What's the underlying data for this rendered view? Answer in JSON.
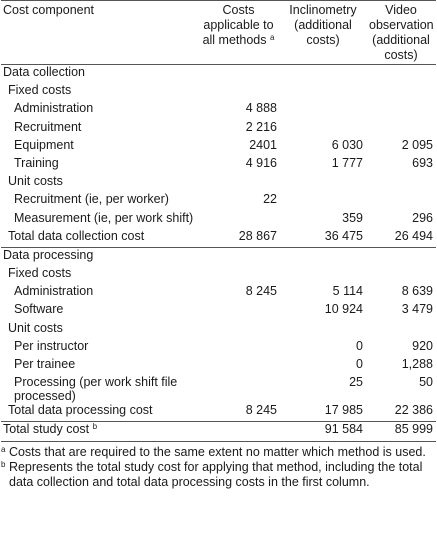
{
  "headers": {
    "component": "Cost component",
    "all_methods": "Costs applicable to all methods",
    "all_methods_mark": "a",
    "inclinometry": "Inclinometry (additional costs)",
    "video": "Video observation (additional costs)"
  },
  "rows": [
    {
      "label": "Data collection",
      "level": 0,
      "sep": true
    },
    {
      "label": "Fixed costs",
      "level": 1
    },
    {
      "label": "Administration",
      "level": 2,
      "all": "4 888"
    },
    {
      "label": "Recruitment",
      "level": 2,
      "all": "2 216"
    },
    {
      "label": "Equipment",
      "level": 2,
      "all": "2401",
      "incl": "6 030",
      "video": "2 095"
    },
    {
      "label": "Training",
      "level": 2,
      "all": "4 916",
      "incl": "1 777",
      "video": "693"
    },
    {
      "label": "Unit costs",
      "level": 1
    },
    {
      "label": "Recruitment (ie, per worker)",
      "level": 2,
      "all": "22"
    },
    {
      "label": "Measurement (ie, per work shift)",
      "level": 2,
      "incl": "359",
      "video": "296"
    },
    {
      "label": "Total data collection cost",
      "level": 1,
      "all": "28 867",
      "incl": "36 475",
      "video": "26 494"
    },
    {
      "label": "Data processing",
      "level": 0,
      "sep": true
    },
    {
      "label": "Fixed costs",
      "level": 1
    },
    {
      "label": "Administration",
      "level": 2,
      "all": "8 245",
      "incl": "5 114",
      "video": "8 639"
    },
    {
      "label": "Software",
      "level": 2,
      "incl": "10 924",
      "video": "3 479"
    },
    {
      "label": "Unit costs",
      "level": 1
    },
    {
      "label": "Per instructor",
      "level": 2,
      "incl": "0",
      "video": "920"
    },
    {
      "label": "Per trainee",
      "level": 2,
      "incl": "0",
      "video": "1,288"
    },
    {
      "label": "Processing (per work shift file processed)",
      "level": 2,
      "incl": "25",
      "video": "50",
      "wrap": true
    },
    {
      "label": "Total data processing cost",
      "level": 1,
      "all": "8 245",
      "incl": "17 985",
      "video": "22 386"
    },
    {
      "label": "Total study cost",
      "mark": "b",
      "level": 0,
      "incl": "91 584",
      "video": "85 999",
      "sep": true,
      "last": true
    }
  ],
  "footnotes": [
    {
      "mark": "a",
      "text": "Costs that are required to the same extent no matter which method is used."
    },
    {
      "mark": "b",
      "text": "Represents the total study cost for applying that method, including the total data collection and total data processing costs in the first column."
    }
  ]
}
